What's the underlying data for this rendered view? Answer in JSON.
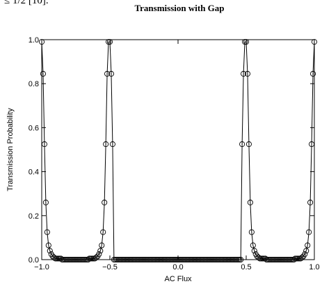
{
  "context_text": "≤ 1/2 [10].",
  "chart_data": {
    "type": "line",
    "title": "Transmission with Gap",
    "x_label": "AC Flux",
    "y_label": "Transmission Probability",
    "marker": "circle",
    "xlim": [
      -1,
      1
    ],
    "ylim": [
      0,
      1
    ],
    "xticks": [
      {
        "value": -1,
        "label": "−1.0"
      },
      {
        "value": -0.5,
        "label": "−0.5"
      },
      {
        "value": 0,
        "label": "0.0"
      },
      0.5,
      {
        "value": 1,
        "label": "1.0"
      }
    ],
    "yticks": [
      {
        "value": 0,
        "label": "0.0"
      },
      0.2,
      0.4,
      0.6,
      0.8,
      {
        "value": 1,
        "label": "1.0"
      }
    ],
    "x": [
      -1,
      -0.99,
      -0.98,
      -0.97,
      -0.96,
      -0.95,
      -0.94,
      -0.93,
      -0.92,
      -0.91,
      -0.9,
      -0.89,
      -0.88,
      -0.87,
      -0.86,
      -0.85,
      -0.84,
      -0.83,
      -0.82,
      -0.81,
      -0.8,
      -0.79,
      -0.78,
      -0.77,
      -0.76,
      -0.75,
      -0.74,
      -0.73,
      -0.72,
      -0.71,
      -0.7,
      -0.69,
      -0.68,
      -0.67,
      -0.66,
      -0.65,
      -0.64,
      -0.63,
      -0.62,
      -0.61,
      -0.6,
      -0.59,
      -0.58,
      -0.57,
      -0.56,
      -0.55,
      -0.54,
      -0.53,
      -0.52,
      -0.51,
      -0.5,
      -0.49,
      -0.48,
      -0.47,
      -0.46,
      -0.45,
      -0.44,
      -0.43,
      -0.42,
      -0.41,
      -0.4,
      -0.39,
      -0.38,
      -0.37,
      -0.36,
      -0.35,
      -0.34,
      -0.33,
      -0.32,
      -0.31,
      -0.3,
      -0.29,
      -0.28,
      -0.27,
      -0.26,
      -0.25,
      -0.24,
      -0.23,
      -0.22,
      -0.21,
      -0.2,
      -0.19,
      -0.18,
      -0.17,
      -0.16,
      -0.15,
      -0.14,
      -0.13,
      -0.12,
      -0.11,
      -0.1,
      -0.09,
      -0.08,
      -0.07,
      -0.06,
      -0.05,
      -0.04,
      -0.03,
      -0.02,
      -0.01,
      0,
      0.01,
      0.02,
      0.03,
      0.04,
      0.05,
      0.06,
      0.07,
      0.08,
      0.09,
      0.1,
      0.11,
      0.12,
      0.13,
      0.14,
      0.15,
      0.16,
      0.17,
      0.18,
      0.19,
      0.2,
      0.21,
      0.22,
      0.23,
      0.24,
      0.25,
      0.26,
      0.27,
      0.28,
      0.29,
      0.3,
      0.31,
      0.32,
      0.33,
      0.34,
      0.35,
      0.36,
      0.37,
      0.38,
      0.39,
      0.4,
      0.41,
      0.42,
      0.43,
      0.44,
      0.45,
      0.46,
      0.47,
      0.48,
      0.49,
      0.5,
      0.51,
      0.52,
      0.53,
      0.54,
      0.55,
      0.56,
      0.57,
      0.58,
      0.59,
      0.6,
      0.61,
      0.62,
      0.63,
      0.64,
      0.65,
      0.66,
      0.67,
      0.68,
      0.69,
      0.7,
      0.71,
      0.72,
      0.73,
      0.74,
      0.75,
      0.76,
      0.77,
      0.78,
      0.79,
      0.8,
      0.81,
      0.82,
      0.83,
      0.84,
      0.85,
      0.86,
      0.87,
      0.88,
      0.89,
      0.9,
      0.91,
      0.92,
      0.93,
      0.94,
      0.95,
      0.96,
      0.97,
      0.98,
      0.99,
      1
    ],
    "series": [
      {
        "color": "#000000",
        "values": [
          0.99,
          0.845,
          0.525,
          0.26,
          0.125,
          0.065,
          0.04,
          0.025,
          0.015,
          0.01,
          0.005,
          0.005,
          0.005,
          0.005,
          0.005,
          0,
          0,
          0,
          0,
          0,
          0,
          0,
          0,
          0,
          0,
          0,
          0,
          0,
          0,
          0,
          0,
          0,
          0,
          0,
          0,
          0.005,
          0.005,
          0.005,
          0.005,
          0.005,
          0.01,
          0.015,
          0.025,
          0.04,
          0.065,
          0.125,
          0.26,
          0.525,
          0.845,
          0.99,
          0.99,
          0.845,
          0.525,
          0,
          0,
          0,
          0,
          0,
          0,
          0,
          0,
          0,
          0,
          0,
          0,
          0,
          0,
          0,
          0,
          0,
          0,
          0,
          0,
          0,
          0,
          0,
          0,
          0,
          0,
          0,
          0,
          0,
          0,
          0,
          0,
          0,
          0,
          0,
          0,
          0,
          0,
          0,
          0,
          0,
          0,
          0,
          0,
          0,
          0,
          0,
          0,
          0,
          0,
          0,
          0,
          0,
          0,
          0,
          0,
          0,
          0,
          0,
          0,
          0,
          0,
          0,
          0,
          0,
          0,
          0,
          0,
          0,
          0,
          0,
          0,
          0,
          0,
          0,
          0,
          0,
          0,
          0,
          0,
          0,
          0,
          0,
          0,
          0,
          0,
          0,
          0,
          0,
          0,
          0,
          0,
          0,
          0,
          0.525,
          0.845,
          0.99,
          0.99,
          0.845,
          0.525,
          0.26,
          0.125,
          0.065,
          0.04,
          0.025,
          0.015,
          0.01,
          0.005,
          0.005,
          0.005,
          0.005,
          0.005,
          0,
          0,
          0,
          0,
          0,
          0,
          0,
          0,
          0,
          0,
          0,
          0,
          0,
          0,
          0,
          0,
          0,
          0,
          0,
          0,
          0,
          0.005,
          0.005,
          0.005,
          0.005,
          0.005,
          0.01,
          0.015,
          0.025,
          0.04,
          0.065,
          0.125,
          0.26,
          0.525,
          0.845,
          0.99
        ]
      }
    ]
  }
}
